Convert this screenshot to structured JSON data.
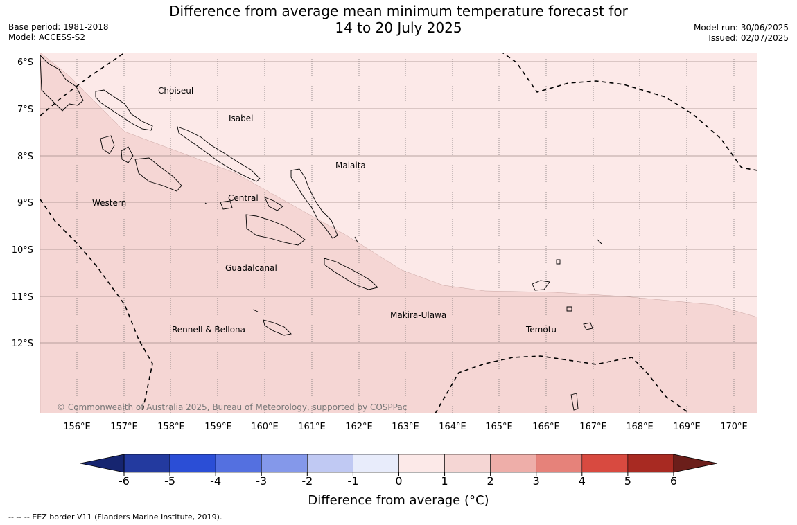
{
  "header": {
    "title_line1": "Difference from average mean minimum temperature forecast for",
    "title_line2": "14 to 20 July 2025",
    "base_period": "Base period: 1981-2018",
    "model": "Model: ACCESS-S2",
    "model_run": "Model run: 30/06/2025",
    "issued": "Issued: 02/07/2025"
  },
  "map": {
    "lat_labels": [
      "6°S",
      "7°S",
      "8°S",
      "9°S",
      "10°S",
      "11°S",
      "12°S"
    ],
    "lon_labels": [
      "156°E",
      "157°E",
      "158°E",
      "159°E",
      "160°E",
      "161°E",
      "162°E",
      "163°E",
      "164°E",
      "165°E",
      "166°E",
      "167°E",
      "168°E",
      "169°E",
      "170°E"
    ],
    "provinces": [
      "Choiseul",
      "Isabel",
      "Malaita",
      "Western",
      "Central",
      "Guadalcanal",
      "Makira-Ulawa",
      "Rennell & Bellona",
      "Temotu"
    ],
    "copyright": "© Commonwealth of Australia 2025, Bureau of Meteorology, supported by COSPPac",
    "fill_colors": {
      "zero_to_one": "#fce9e8",
      "one_to_two": "#f5d6d4"
    }
  },
  "colorbar": {
    "ticks": [
      "-6",
      "-5",
      "-4",
      "-3",
      "-2",
      "-1",
      "0",
      "1",
      "2",
      "3",
      "4",
      "5",
      "6"
    ],
    "colors": [
      "#233a9f",
      "#2b4ed6",
      "#5470e0",
      "#8498ea",
      "#c0c9f3",
      "#e8ecfb",
      "#fce9e8",
      "#f5d6d4",
      "#eeaea9",
      "#e6827a",
      "#d84a40",
      "#a82a22"
    ],
    "under_color": "#162570",
    "over_color": "#6b1e1a",
    "label": "Difference from average (°C)"
  },
  "footnote": "--  --  -- EEZ border V11 (Flanders Marine Institute, 2019)."
}
